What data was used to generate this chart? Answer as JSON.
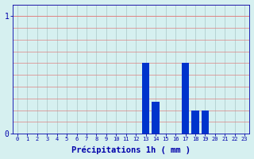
{
  "categories": [
    0,
    1,
    2,
    3,
    4,
    5,
    6,
    7,
    8,
    9,
    10,
    11,
    12,
    13,
    14,
    15,
    16,
    17,
    18,
    19,
    20,
    21,
    22,
    23
  ],
  "values": [
    0,
    0,
    0,
    0,
    0,
    0,
    0,
    0,
    0,
    0,
    0,
    0,
    0,
    0.6,
    0.27,
    0,
    0,
    0.6,
    0.2,
    0.2,
    0,
    0,
    0,
    0
  ],
  "bar_color": "#0033cc",
  "background_color": "#d6f0f0",
  "grid_color_v": "#b0cece",
  "grid_color_h": "#e08080",
  "axis_color": "#0000aa",
  "tick_color": "#0000aa",
  "xlabel": "Précipitations 1h ( mm )",
  "xlabel_fontsize": 7.5,
  "ylim": [
    0,
    1.1
  ],
  "yticks": [
    0,
    1
  ],
  "title": ""
}
